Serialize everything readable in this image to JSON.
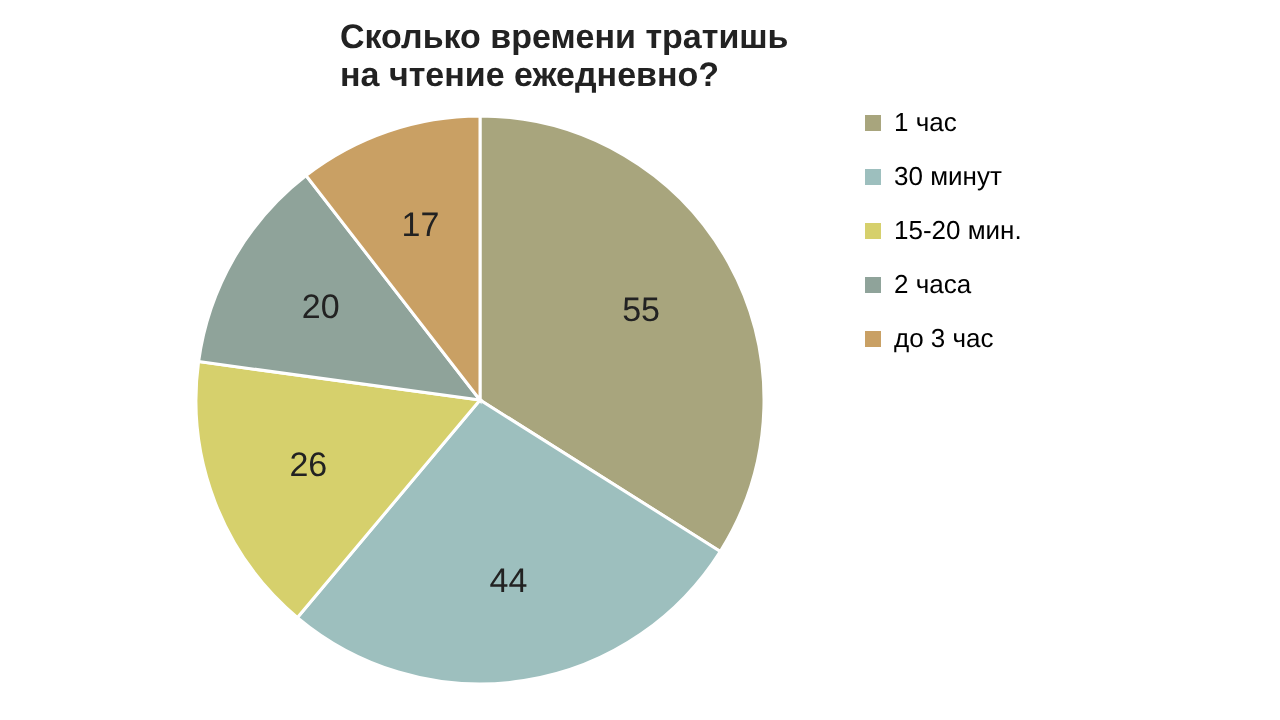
{
  "chart_data": {
    "type": "pie",
    "title": "Сколько времени тратишь\nна чтение ежедневно?",
    "categories": [
      "1 час",
      "30 минут",
      "15-20 мин.",
      "2 часа",
      "до 3 час"
    ],
    "values": [
      55,
      44,
      26,
      20,
      17
    ],
    "colors": [
      "#a8a57d",
      "#9dbfbe",
      "#d6d06c",
      "#8fa39a",
      "#c9a064"
    ],
    "data_labels": true,
    "legend": "right"
  }
}
